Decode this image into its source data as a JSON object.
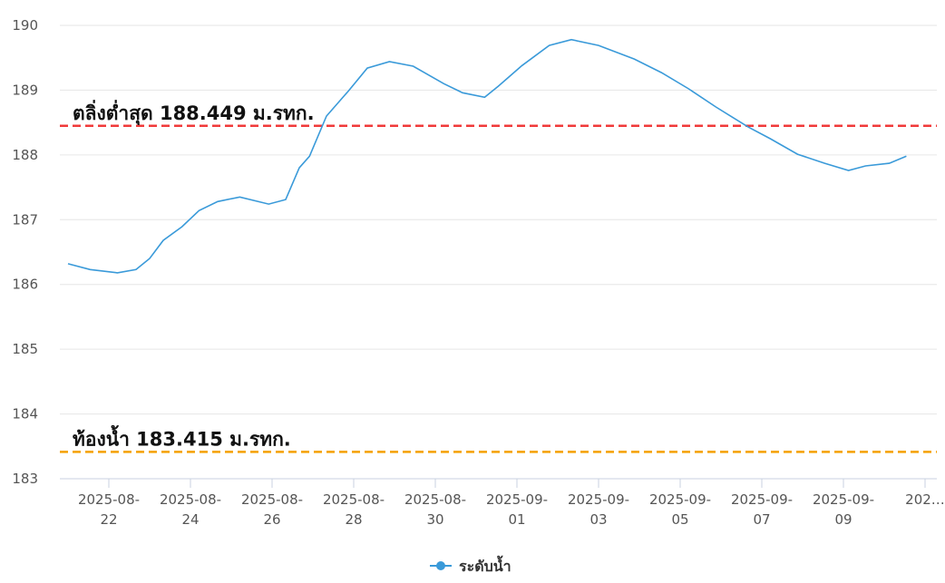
{
  "chart_data": {
    "type": "line",
    "title": "",
    "xlabel": "",
    "ylabel": "",
    "ylim": [
      183,
      190
    ],
    "yticks": [
      183,
      184,
      185,
      186,
      187,
      188,
      189,
      190
    ],
    "xlim": [
      "2025-08-20T20:00",
      "2025-09-11T00:00"
    ],
    "xticks": [
      {
        "date": "2025-08-22",
        "line1": "2025-08-",
        "line2": "22"
      },
      {
        "date": "2025-08-24",
        "line1": "2025-08-",
        "line2": "24"
      },
      {
        "date": "2025-08-26",
        "line1": "2025-08-",
        "line2": "26"
      },
      {
        "date": "2025-08-28",
        "line1": "2025-08-",
        "line2": "28"
      },
      {
        "date": "2025-08-30",
        "line1": "2025-08-",
        "line2": "30"
      },
      {
        "date": "2025-09-01",
        "line1": "2025-09-",
        "line2": "01"
      },
      {
        "date": "2025-09-03",
        "line1": "2025-09-",
        "line2": "03"
      },
      {
        "date": "2025-09-05",
        "line1": "2025-09-",
        "line2": "05"
      },
      {
        "date": "2025-09-07",
        "line1": "2025-09-",
        "line2": "07"
      },
      {
        "date": "2025-09-09",
        "line1": "2025-09-",
        "line2": "09"
      },
      {
        "date": "2025-09-11",
        "line1": "202…",
        "line2": ""
      }
    ],
    "grid": true,
    "legend_position": "bottom-center",
    "series": [
      {
        "name": "ระดับน้ำ",
        "color": "#3a9ad9",
        "x": [
          "2025-08-21T00",
          "2025-08-21T13",
          "2025-08-22T05",
          "2025-08-22T16",
          "2025-08-23T00",
          "2025-08-23T08",
          "2025-08-23T19",
          "2025-08-24T05",
          "2025-08-24T16",
          "2025-08-25T05",
          "2025-08-25T22",
          "2025-08-26T08",
          "2025-08-26T16",
          "2025-08-26T22",
          "2025-08-27T08",
          "2025-08-27T21",
          "2025-08-28T08",
          "2025-08-28T21",
          "2025-08-29T11",
          "2025-08-30T05",
          "2025-08-30T16",
          "2025-08-31T05",
          "2025-08-31T13",
          "2025-09-01T03",
          "2025-09-01T19",
          "2025-09-02T08",
          "2025-09-03T00",
          "2025-09-03T21",
          "2025-09-04T13",
          "2025-09-05T05",
          "2025-09-05T21",
          "2025-09-06T16",
          "2025-09-07T05",
          "2025-09-07T21",
          "2025-09-08T13",
          "2025-09-09T03",
          "2025-09-09T13",
          "2025-09-10T03",
          "2025-09-10T13"
        ],
        "values": [
          186.32,
          186.23,
          186.18,
          186.23,
          186.4,
          186.68,
          186.89,
          187.14,
          187.28,
          187.35,
          187.24,
          187.31,
          187.8,
          187.98,
          188.6,
          188.99,
          189.34,
          189.44,
          189.37,
          189.1,
          188.96,
          188.89,
          189.06,
          189.38,
          189.69,
          189.78,
          189.69,
          189.48,
          189.27,
          189.02,
          188.74,
          188.43,
          188.25,
          188.01,
          187.87,
          187.76,
          187.83,
          187.87,
          187.98
        ]
      }
    ],
    "annotations": [
      {
        "label": "ตลิ่งต่ำสุด 188.449 ม.รทก.",
        "value": 188.449,
        "color": "#f03a3a",
        "style": "dashed"
      },
      {
        "label": "ท้องน้ำ 183.415 ม.รทก.",
        "value": 183.415,
        "color": "#f5a000",
        "style": "dashed"
      }
    ]
  }
}
